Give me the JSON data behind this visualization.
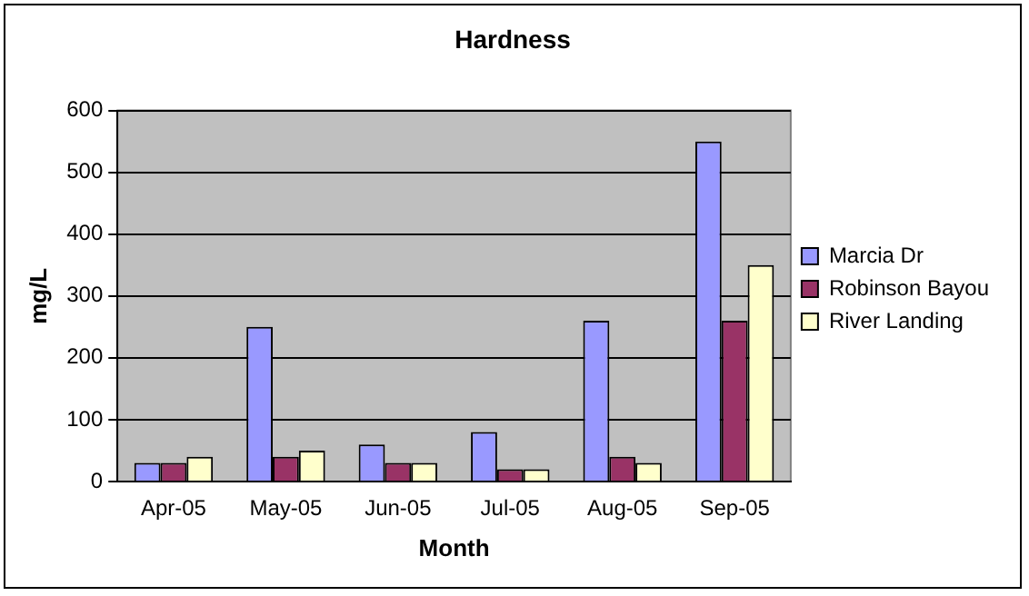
{
  "chart_data": {
    "type": "bar",
    "title": "Hardness",
    "xlabel": "Month",
    "ylabel": "mg/L",
    "categories": [
      "Apr-05",
      "May-05",
      "Jun-05",
      "Jul-05",
      "Aug-05",
      "Sep-05"
    ],
    "series": [
      {
        "name": "Marcia Dr",
        "color": "#9999ff",
        "values": [
          30,
          250,
          60,
          80,
          260,
          550
        ]
      },
      {
        "name": "Robinson Bayou",
        "color": "#993366",
        "values": [
          30,
          40,
          30,
          20,
          40,
          260
        ]
      },
      {
        "name": "River Landing",
        "color": "#ffffcc",
        "values": [
          40,
          50,
          30,
          20,
          30,
          350
        ]
      }
    ],
    "ylim": [
      0,
      600
    ],
    "yticks": [
      0,
      100,
      200,
      300,
      400,
      500,
      600
    ],
    "grid": "y",
    "legend": "right"
  }
}
